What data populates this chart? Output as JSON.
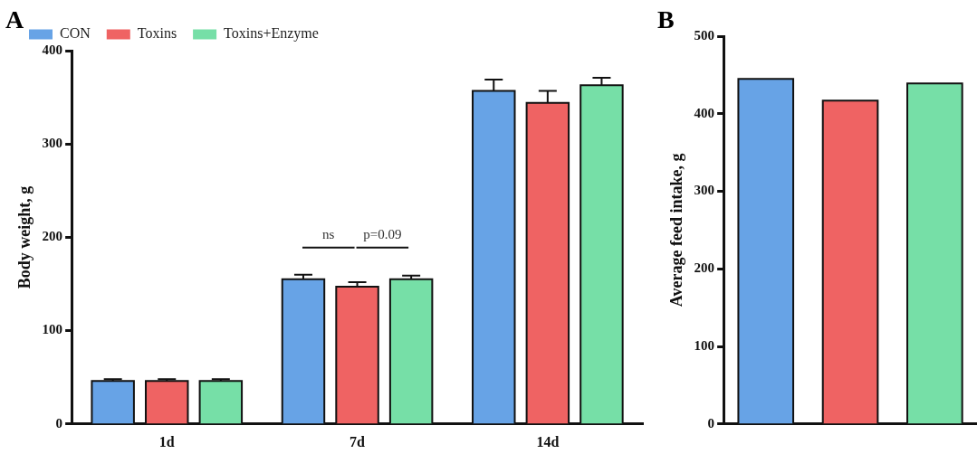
{
  "chart_data": [
    {
      "type": "bar",
      "title": "A",
      "ylabel": "Body weight, g",
      "categories": [
        "1d",
        "7d",
        "14d"
      ],
      "series": [
        {
          "name": "CON",
          "color": "#67a3e6",
          "values": [
            46,
            155,
            357
          ],
          "errors": [
            2,
            5,
            12
          ]
        },
        {
          "name": "Toxins",
          "color": "#ef6363",
          "values": [
            46,
            147,
            344
          ],
          "errors": [
            2,
            5,
            13
          ]
        },
        {
          "name": "Toxins+Enzyme",
          "color": "#76dfa7",
          "values": [
            46,
            155,
            363
          ],
          "errors": [
            2,
            4,
            8
          ]
        }
      ],
      "ylim": [
        0,
        400
      ],
      "yticks": [
        0,
        100,
        200,
        300,
        400
      ],
      "grid": false,
      "legend": "top left",
      "annotations": [
        "ns",
        "p=0.09"
      ]
    },
    {
      "type": "bar",
      "title": "B",
      "ylabel": "Average feed intake, g",
      "categories": [
        null,
        null,
        null
      ],
      "values": [
        445,
        417,
        439
      ],
      "colors": [
        "#67a3e6",
        "#ef6363",
        "#76dfa7"
      ],
      "ylim": [
        0,
        500
      ],
      "yticks": [
        0,
        100,
        200,
        300,
        400,
        500
      ],
      "grid": false,
      "legend": false
    }
  ]
}
